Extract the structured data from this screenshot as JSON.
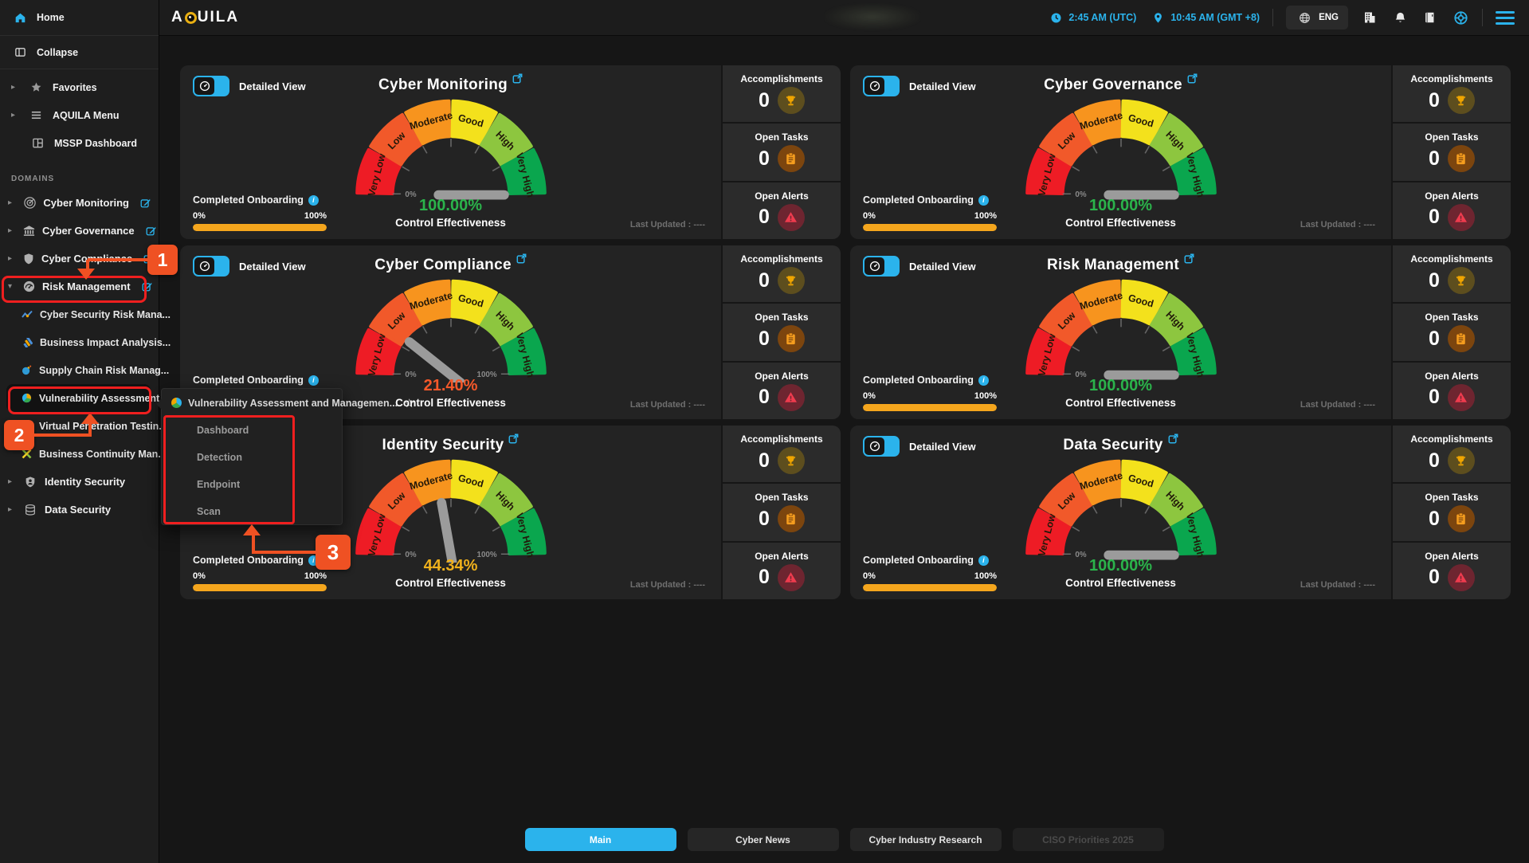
{
  "topbar": {
    "logo": {
      "pre": "A",
      "q": "Q",
      "post": "UILA"
    },
    "utc_time": "2:45 AM (UTC)",
    "local_time": "10:45 AM (GMT +8)",
    "language": "ENG",
    "icons": [
      "clock-icon",
      "location-pin-icon",
      "globe-icon",
      "building-icon",
      "bell-icon",
      "book-icon",
      "wheel-icon",
      "hamburger-menu-icon"
    ]
  },
  "sidebar": {
    "top": [
      {
        "label": "Home"
      },
      {
        "label": "Collapse"
      }
    ],
    "menu": [
      {
        "label": "Favorites"
      },
      {
        "label": "AQUILA Menu"
      },
      {
        "label": "MSSP Dashboard"
      }
    ],
    "domains_label": "DOMAINS",
    "domains": [
      {
        "label": "Cyber Monitoring",
        "icon": "radar-icon",
        "editable": true
      },
      {
        "label": "Cyber Governance",
        "icon": "bank-icon",
        "editable": true
      },
      {
        "label": "Cyber Compliance",
        "icon": "shield-icon",
        "editable": true
      },
      {
        "label": "Risk Management",
        "icon": "gauge-icon",
        "editable": true,
        "expanded": true,
        "children": [
          {
            "label": "Cyber Security Risk Mana...",
            "icon": "trend-icon"
          },
          {
            "label": "Business Impact Analysis...",
            "icon": "bars-icon"
          },
          {
            "label": "Supply Chain Risk Manag...",
            "icon": "bomb-icon"
          },
          {
            "label": "Vulnerability Assessment...",
            "icon": "pie-icon",
            "active": true
          },
          {
            "label": "Virtual Penetration Testin...",
            "icon": "target-icon"
          },
          {
            "label": "Business Continuity Man...",
            "icon": "x-icon"
          }
        ]
      },
      {
        "label": "Identity Security",
        "icon": "identity-icon",
        "editable": false
      },
      {
        "label": "Data Security",
        "icon": "database-icon",
        "editable": false
      }
    ]
  },
  "popup": {
    "title": "Vulnerability Assessment and Managemen...",
    "star": "☆",
    "items": [
      "Dashboard",
      "Detection",
      "Endpoint",
      "Scan"
    ]
  },
  "strings": {
    "detailed_view": "Detailed View",
    "completed_onboarding": "Completed Onboarding",
    "range_min": "0%",
    "range_max": "100%",
    "control_effectiveness": "Control Effectiveness",
    "last_updated": "Last Updated : ----"
  },
  "gauge": {
    "labels": [
      "Very Low",
      "Low",
      "Moderate",
      "Good",
      "High",
      "Very High"
    ],
    "colors": [
      "#ee1c25",
      "#f1592a",
      "#f7941e",
      "#f3e11c",
      "#8dc63f",
      "#0aa64e"
    ],
    "tick_min": "0%",
    "tick_max": "100%",
    "needle_color": "#9b9b9b"
  },
  "cards": [
    {
      "title": "Cyber Monitoring",
      "value": "100.00%",
      "value_color": "#2bb34b",
      "needle_pct": 100,
      "onboarding_pct": 100,
      "stats": [
        {
          "label": "Accomplishments",
          "value": "0",
          "icon": "trophy-icon"
        },
        {
          "label": "Open Tasks",
          "value": "0",
          "icon": "tasks-icon"
        },
        {
          "label": "Open Alerts",
          "value": "0",
          "icon": "alert-icon"
        }
      ]
    },
    {
      "title": "Cyber Governance",
      "value": "100.00%",
      "value_color": "#2bb34b",
      "needle_pct": 100,
      "onboarding_pct": 100,
      "stats": [
        {
          "label": "Accomplishments",
          "value": "0",
          "icon": "trophy-icon"
        },
        {
          "label": "Open Tasks",
          "value": "0",
          "icon": "tasks-icon"
        },
        {
          "label": "Open Alerts",
          "value": "0",
          "icon": "alert-icon"
        }
      ]
    },
    {
      "title": "Cyber Compliance",
      "value": "21.40%",
      "value_color": "#f4582a",
      "needle_pct": 21.4,
      "onboarding_pct": 100,
      "stats": [
        {
          "label": "Accomplishments",
          "value": "0",
          "icon": "trophy-icon"
        },
        {
          "label": "Open Tasks",
          "value": "0",
          "icon": "tasks-icon"
        },
        {
          "label": "Open Alerts",
          "value": "0",
          "icon": "alert-icon"
        }
      ]
    },
    {
      "title": "Risk Management",
      "value": "100.00%",
      "value_color": "#2bb34b",
      "needle_pct": 100,
      "onboarding_pct": 100,
      "stats": [
        {
          "label": "Accomplishments",
          "value": "0",
          "icon": "trophy-icon"
        },
        {
          "label": "Open Tasks",
          "value": "0",
          "icon": "tasks-icon"
        },
        {
          "label": "Open Alerts",
          "value": "0",
          "icon": "alert-icon"
        }
      ]
    },
    {
      "title": "Identity Security",
      "value": "44.34%",
      "value_color": "#f0b11c",
      "needle_pct": 44.34,
      "onboarding_pct": 100,
      "stats": [
        {
          "label": "Accomplishments",
          "value": "0",
          "icon": "trophy-icon"
        },
        {
          "label": "Open Tasks",
          "value": "0",
          "icon": "tasks-icon"
        },
        {
          "label": "Open Alerts",
          "value": "0",
          "icon": "alert-icon"
        }
      ]
    },
    {
      "title": "Data Security",
      "value": "100.00%",
      "value_color": "#2bb34b",
      "needle_pct": 100,
      "onboarding_pct": 100,
      "stats": [
        {
          "label": "Accomplishments",
          "value": "0",
          "icon": "trophy-icon"
        },
        {
          "label": "Open Tasks",
          "value": "0",
          "icon": "tasks-icon"
        },
        {
          "label": "Open Alerts",
          "value": "0",
          "icon": "alert-icon"
        }
      ]
    }
  ],
  "footer_tabs": [
    {
      "label": "Main",
      "state": "active"
    },
    {
      "label": "Cyber News",
      "state": "normal"
    },
    {
      "label": "Cyber Industry Research",
      "state": "normal"
    },
    {
      "label": "CISO Priorities 2025",
      "state": "disabled"
    }
  ],
  "annotations": {
    "step1": "1",
    "step2": "2",
    "step3": "3"
  }
}
